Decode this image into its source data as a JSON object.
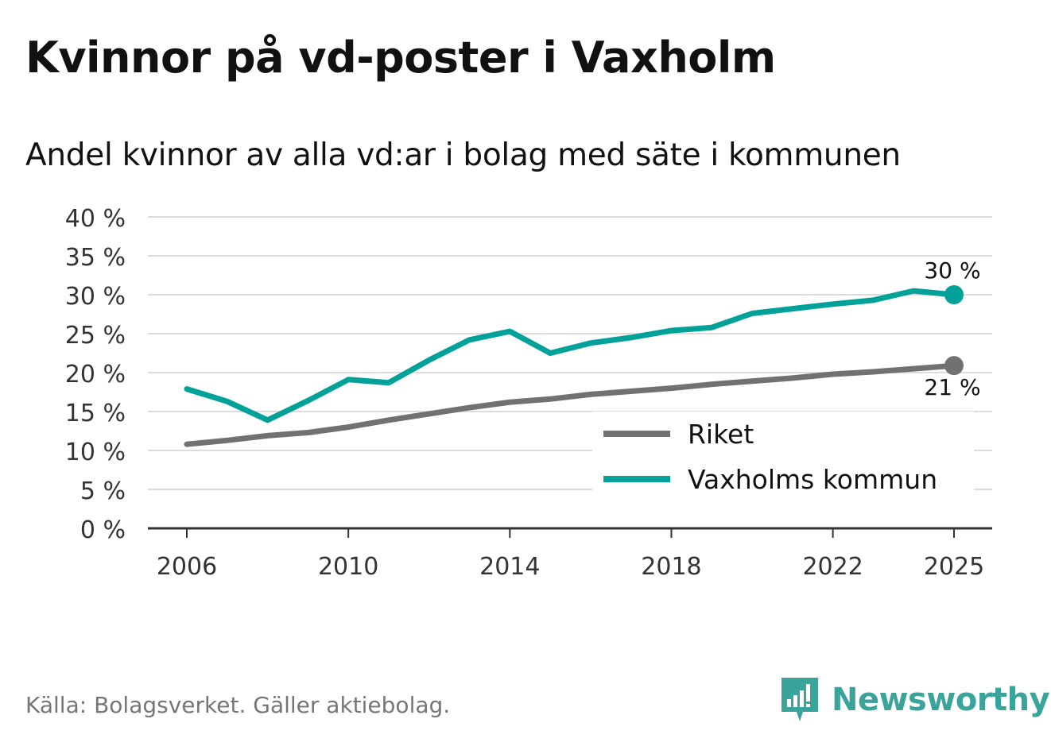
{
  "title": "Kvinnor på vd-poster i Vaxholm",
  "subtitle": "Andel kvinnor av alla vd:ar i bolag med säte i kommunen",
  "source": "Källa: Bolagsverket. Gäller aktiebolag.",
  "logo": {
    "name": "Newsworthy",
    "icon": "newsworthy-logo-icon",
    "color": "#3aa39a"
  },
  "colors": {
    "riket": "#717073",
    "vaxholm": "#00a199",
    "grid": "#dcdcdc",
    "axis": "#333333"
  },
  "chart_data": {
    "type": "line",
    "title": "Kvinnor på vd-poster i Vaxholm",
    "xlabel": "",
    "ylabel": "",
    "x": [
      2006,
      2007,
      2008,
      2009,
      2010,
      2011,
      2012,
      2013,
      2014,
      2015,
      2016,
      2017,
      2018,
      2019,
      2020,
      2021,
      2022,
      2023,
      2024,
      2025
    ],
    "xlim": [
      2006,
      2025
    ],
    "ylim": [
      0,
      40
    ],
    "y_ticks": [
      0,
      5,
      10,
      15,
      20,
      25,
      30,
      35,
      40
    ],
    "y_tick_labels": [
      "0 %",
      "5 %",
      "10 %",
      "15 %",
      "20 %",
      "25 %",
      "30 %",
      "35 %",
      "40 %"
    ],
    "x_ticks": [
      2006,
      2010,
      2014,
      2018,
      2022,
      2025
    ],
    "x_tick_labels": [
      "2006",
      "2010",
      "2014",
      "2018",
      "2022",
      "2025"
    ],
    "grid": true,
    "legend_position": "bottom-right",
    "series": [
      {
        "name": "Riket",
        "color": "#717073",
        "values": [
          10.8,
          11.3,
          11.9,
          12.3,
          13.0,
          13.9,
          14.7,
          15.5,
          16.2,
          16.6,
          17.2,
          17.6,
          18.0,
          18.5,
          18.9,
          19.3,
          19.8,
          20.1,
          20.5,
          20.9
        ],
        "end_label": "21 %"
      },
      {
        "name": "Vaxholms kommun",
        "color": "#00a199",
        "values": [
          17.9,
          16.3,
          13.9,
          16.4,
          19.1,
          18.7,
          21.6,
          24.2,
          25.3,
          22.5,
          23.8,
          24.5,
          25.4,
          25.8,
          27.6,
          28.2,
          28.8,
          29.3,
          30.5,
          30.0
        ],
        "end_label": "30 %"
      }
    ]
  }
}
